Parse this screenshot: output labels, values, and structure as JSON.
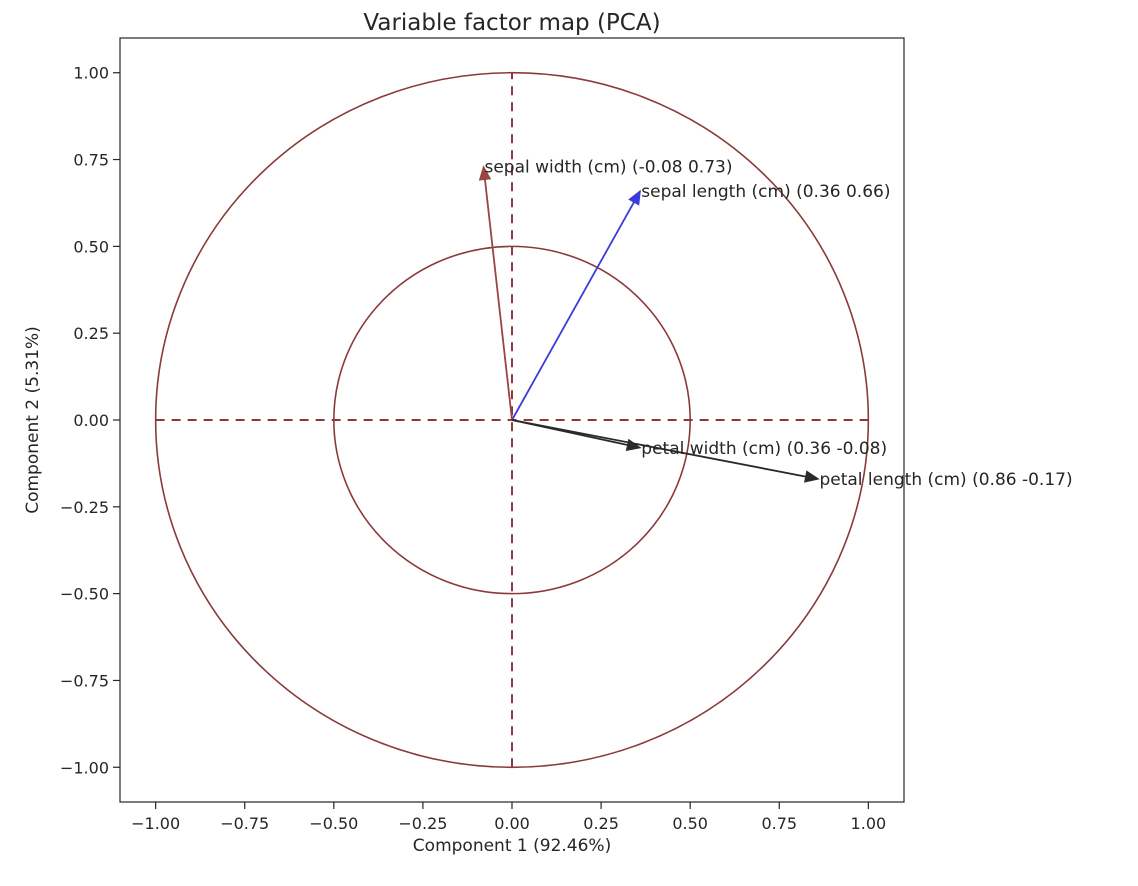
{
  "chart_data": {
    "type": "scatter",
    "title": "Variable factor map (PCA)",
    "xlabel": "Component 1 (92.46%)",
    "ylabel": "Component 2 (5.31%)",
    "xlim": [
      -1.1,
      1.1
    ],
    "ylim": [
      -1.1,
      1.1
    ],
    "xticks": [
      -1.0,
      -0.75,
      -0.5,
      -0.25,
      0.0,
      0.25,
      0.5,
      0.75,
      1.0
    ],
    "yticks": [
      -1.0,
      -0.75,
      -0.5,
      -0.25,
      0.0,
      0.25,
      0.5,
      0.75,
      1.0
    ],
    "xtick_labels": [
      "−1.00",
      "−0.75",
      "−0.50",
      "−0.25",
      "0.00",
      "0.25",
      "0.50",
      "0.75",
      "1.00"
    ],
    "ytick_labels": [
      "−1.00",
      "−0.75",
      "−0.50",
      "−0.25",
      "0.00",
      "0.25",
      "0.50",
      "0.75",
      "1.00"
    ],
    "grid": false,
    "circles": [
      {
        "radius": 1.0,
        "color": "#8b3a3a"
      },
      {
        "radius": 0.5,
        "color": "#8b3a3a"
      }
    ],
    "reference_lines": {
      "color": "#8b3a3a",
      "style": "dashed"
    },
    "vectors": [
      {
        "label": "sepal length (cm) (0.36 0.66)",
        "x": 0.36,
        "y": 0.66,
        "color": "#3b3bdc"
      },
      {
        "label": "sepal width (cm) (-0.08 0.73)",
        "x": -0.08,
        "y": 0.73,
        "color": "#9a4444"
      },
      {
        "label": "petal length (cm) (0.86 -0.17)",
        "x": 0.86,
        "y": -0.17,
        "color": "#2a2a2a"
      },
      {
        "label": "petal width (cm) (0.36 -0.08)",
        "x": 0.36,
        "y": -0.08,
        "color": "#2a2a2a"
      }
    ]
  }
}
